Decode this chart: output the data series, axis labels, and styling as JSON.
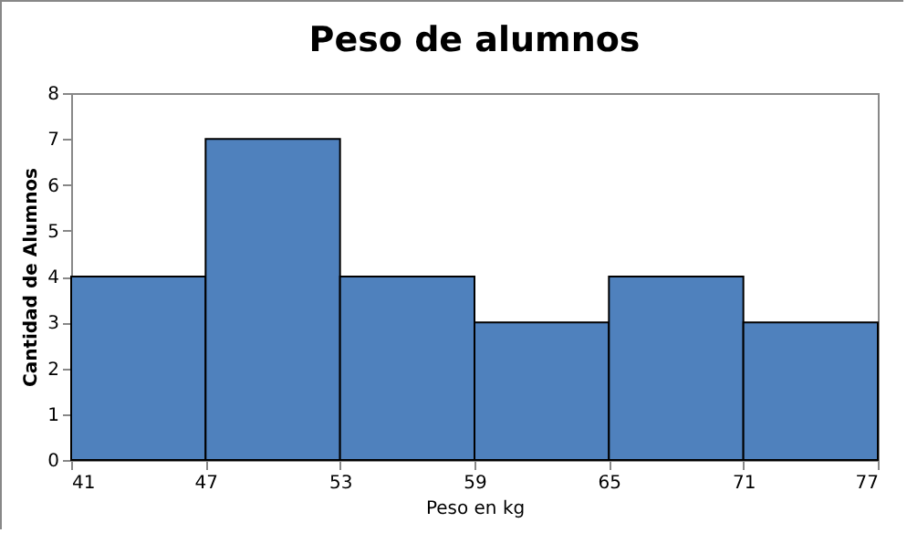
{
  "chart_data": {
    "type": "histogram",
    "title": "Peso de alumnos",
    "xlabel": "Peso en kg",
    "ylabel": "Cantidad de Alumnos",
    "bins": [
      41,
      47,
      53,
      59,
      65,
      71,
      77
    ],
    "values": [
      4,
      7,
      4,
      3,
      4,
      3
    ],
    "color": "#4f81bd",
    "xlim": [
      41,
      77
    ],
    "xticks": [
      41,
      47,
      53,
      59,
      65,
      71,
      77
    ],
    "ylim": [
      0,
      8
    ],
    "yticks": [
      0,
      1,
      2,
      3,
      4,
      5,
      6,
      7,
      8
    ],
    "grid": false
  }
}
